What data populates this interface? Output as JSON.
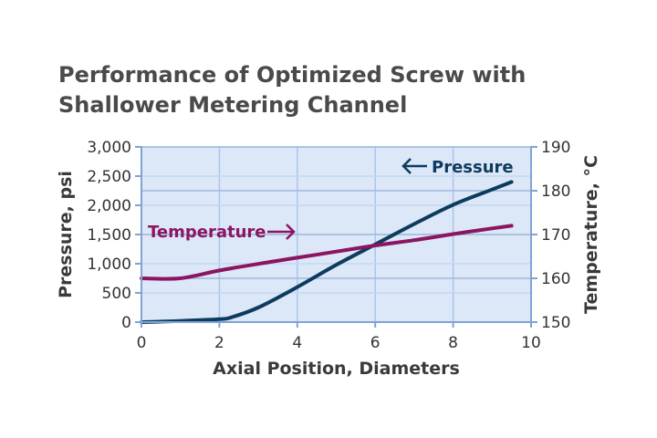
{
  "chart_data": {
    "type": "line",
    "title_lines": [
      "Performance of Optimized Screw with",
      "Shallower Metering Channel"
    ],
    "xlabel": "Axial Position, Diameters",
    "ylabel_left": "Pressure, psi",
    "ylabel_right": "Temperature, °C",
    "xlim": [
      0,
      10
    ],
    "ylim_left": [
      0,
      3000
    ],
    "ylim_right": [
      150,
      190
    ],
    "x_ticks": [
      "0",
      "2",
      "4",
      "6",
      "8",
      "10"
    ],
    "y_left_ticks": [
      "0",
      "500",
      "1,000",
      "1,500",
      "2,000",
      "2,500",
      "3,000"
    ],
    "y_right_ticks": [
      "150",
      "160",
      "170",
      "180",
      "190"
    ],
    "grid": true,
    "series": [
      {
        "name": "Pressure",
        "label": "Pressure",
        "axis": "left",
        "color": "#0d3b5e",
        "x": [
          0,
          1,
          2,
          2.3,
          3,
          4,
          5,
          6,
          7,
          8,
          9,
          9.5
        ],
        "y": [
          0,
          20,
          50,
          80,
          250,
          600,
          980,
          1330,
          1680,
          2010,
          2270,
          2400
        ]
      },
      {
        "name": "Temperature",
        "label": "Temperature",
        "axis": "right",
        "color": "#8b1560",
        "x": [
          0,
          1,
          2,
          3,
          4,
          5,
          6,
          7,
          8,
          9,
          9.5
        ],
        "y": [
          160,
          160,
          161.8,
          163.3,
          164.7,
          166.1,
          167.5,
          168.7,
          170.1,
          171.4,
          172
        ]
      }
    ]
  }
}
